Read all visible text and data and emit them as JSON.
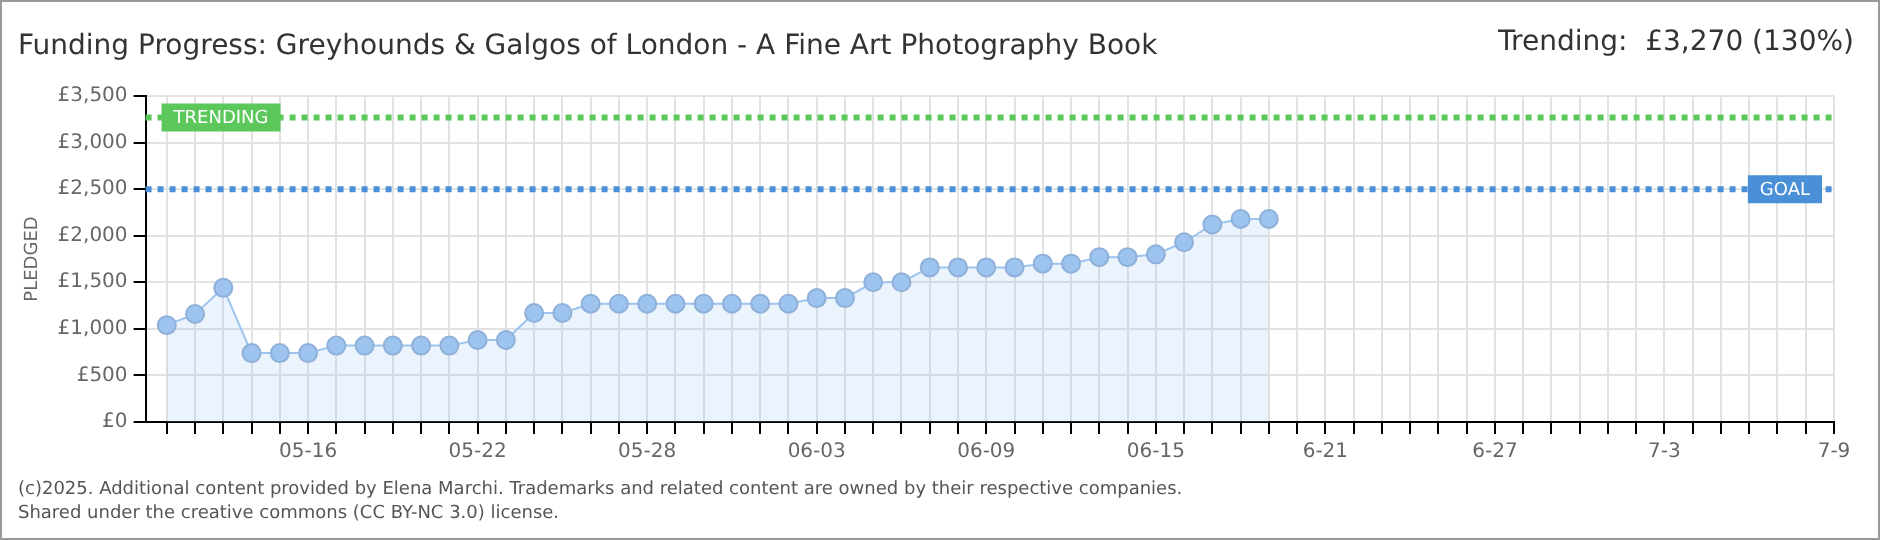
{
  "chart_data": {
    "type": "area",
    "title": "Funding Progress: Greyhounds & Galgos of London - A Fine Art Photography Book",
    "subtitle": "Trending:  £3,270 (130%)",
    "ylabel": "PLEDGED",
    "x": [
      "2025-05-11",
      "2025-05-12",
      "2025-05-13",
      "2025-05-14",
      "2025-05-15",
      "2025-05-16",
      "2025-05-17",
      "2025-05-18",
      "2025-05-19",
      "2025-05-20",
      "2025-05-21",
      "2025-05-22",
      "2025-05-23",
      "2025-05-24",
      "2025-05-25",
      "2025-05-26",
      "2025-05-27",
      "2025-05-28",
      "2025-05-29",
      "2025-05-30",
      "2025-05-31",
      "2025-06-01",
      "2025-06-02",
      "2025-06-03",
      "2025-06-04",
      "2025-06-05",
      "2025-06-06",
      "2025-06-07",
      "2025-06-08",
      "2025-06-09",
      "2025-06-10",
      "2025-06-11",
      "2025-06-12",
      "2025-06-13",
      "2025-06-14",
      "2025-06-15",
      "2025-06-16",
      "2025-06-17",
      "2025-06-18",
      "2025-06-19"
    ],
    "series": [
      {
        "color": "#9cc4ee",
        "values": [
          1040,
          1160,
          1440,
          740,
          740,
          740,
          820,
          820,
          820,
          820,
          820,
          880,
          880,
          1170,
          1170,
          1270,
          1270,
          1270,
          1270,
          1270,
          1270,
          1270,
          1270,
          1330,
          1330,
          1500,
          1500,
          1660,
          1660,
          1660,
          1660,
          1700,
          1700,
          1770,
          1770,
          1800,
          1930,
          2120,
          2180,
          2180
        ]
      }
    ],
    "xlim": [
      "2025-05-10T06:00",
      "2025-07-09"
    ],
    "xticks": [
      {
        "value": "2025-05-11",
        "label": null
      },
      {
        "value": "2025-05-12",
        "label": null
      },
      {
        "value": "2025-05-13",
        "label": null
      },
      {
        "value": "2025-05-14",
        "label": null
      },
      {
        "value": "2025-05-15",
        "label": null
      },
      {
        "value": "2025-05-16",
        "label": "05-16"
      },
      {
        "value": "2025-05-17",
        "label": null
      },
      {
        "value": "2025-05-18",
        "label": null
      },
      {
        "value": "2025-05-19",
        "label": null
      },
      {
        "value": "2025-05-20",
        "label": null
      },
      {
        "value": "2025-05-21",
        "label": null
      },
      {
        "value": "2025-05-22",
        "label": "05-22"
      },
      {
        "value": "2025-05-23",
        "label": null
      },
      {
        "value": "2025-05-24",
        "label": null
      },
      {
        "value": "2025-05-25",
        "label": null
      },
      {
        "value": "2025-05-26",
        "label": null
      },
      {
        "value": "2025-05-27",
        "label": null
      },
      {
        "value": "2025-05-28",
        "label": "05-28"
      },
      {
        "value": "2025-05-29",
        "label": null
      },
      {
        "value": "2025-05-30",
        "label": null
      },
      {
        "value": "2025-05-31",
        "label": null
      },
      {
        "value": "2025-06-01",
        "label": null
      },
      {
        "value": "2025-06-02",
        "label": null
      },
      {
        "value": "2025-06-03",
        "label": "06-03"
      },
      {
        "value": "2025-06-04",
        "label": null
      },
      {
        "value": "2025-06-05",
        "label": null
      },
      {
        "value": "2025-06-06",
        "label": null
      },
      {
        "value": "2025-06-07",
        "label": null
      },
      {
        "value": "2025-06-08",
        "label": null
      },
      {
        "value": "2025-06-09",
        "label": "06-09"
      },
      {
        "value": "2025-06-10",
        "label": null
      },
      {
        "value": "2025-06-11",
        "label": null
      },
      {
        "value": "2025-06-12",
        "label": null
      },
      {
        "value": "2025-06-13",
        "label": null
      },
      {
        "value": "2025-06-14",
        "label": null
      },
      {
        "value": "2025-06-15",
        "label": "06-15"
      },
      {
        "value": "2025-06-16",
        "label": null
      },
      {
        "value": "2025-06-17",
        "label": null
      },
      {
        "value": "2025-06-18",
        "label": null
      },
      {
        "value": "2025-06-19",
        "label": null
      },
      {
        "value": "2025-06-20",
        "label": null
      },
      {
        "value": "2025-06-21",
        "label": "6-21"
      },
      {
        "value": "2025-06-22",
        "label": null
      },
      {
        "value": "2025-06-23",
        "label": null
      },
      {
        "value": "2025-06-24",
        "label": null
      },
      {
        "value": "2025-06-25",
        "label": null
      },
      {
        "value": "2025-06-26",
        "label": null
      },
      {
        "value": "2025-06-27",
        "label": "6-27"
      },
      {
        "value": "2025-06-28",
        "label": null
      },
      {
        "value": "2025-06-29",
        "label": null
      },
      {
        "value": "2025-06-30",
        "label": null
      },
      {
        "value": "2025-07-01",
        "label": null
      },
      {
        "value": "2025-07-02",
        "label": null
      },
      {
        "value": "2025-07-03",
        "label": "7-3"
      },
      {
        "value": "2025-07-04",
        "label": null
      },
      {
        "value": "2025-07-05",
        "label": null
      },
      {
        "value": "2025-07-06",
        "label": null
      },
      {
        "value": "2025-07-07",
        "label": null
      },
      {
        "value": "2025-07-08",
        "label": null
      },
      {
        "value": "2025-07-09",
        "label": "7-9"
      }
    ],
    "ylim": [
      0,
      3500
    ],
    "yticks": [
      {
        "value": 0,
        "label": "£0"
      },
      {
        "value": 500,
        "label": "£500"
      },
      {
        "value": 1000,
        "label": "£1,000"
      },
      {
        "value": 1500,
        "label": "£1,500"
      },
      {
        "value": 2000,
        "label": "£2,000"
      },
      {
        "value": 2500,
        "label": "£2,500"
      },
      {
        "value": 3000,
        "label": "£3,000"
      },
      {
        "value": 3500,
        "label": "£3,500"
      }
    ],
    "ref_lines": [
      {
        "axis": "y",
        "value": 3270,
        "label": "TRENDING",
        "color": "#5cc85c",
        "line_style": "dotted"
      },
      {
        "axis": "y",
        "value": 2500,
        "label": "GOAL",
        "color": "#4a90d9",
        "line_style": "dotted"
      }
    ],
    "grid": true,
    "marker": "circle",
    "legend": false,
    "annotations": [
      "(c)2025. Additional content provided by Elena Marchi. Trademarks and related content are owned by their respective companies.",
      "Shared under the creative commons (CC BY-NC 3.0) license."
    ]
  }
}
